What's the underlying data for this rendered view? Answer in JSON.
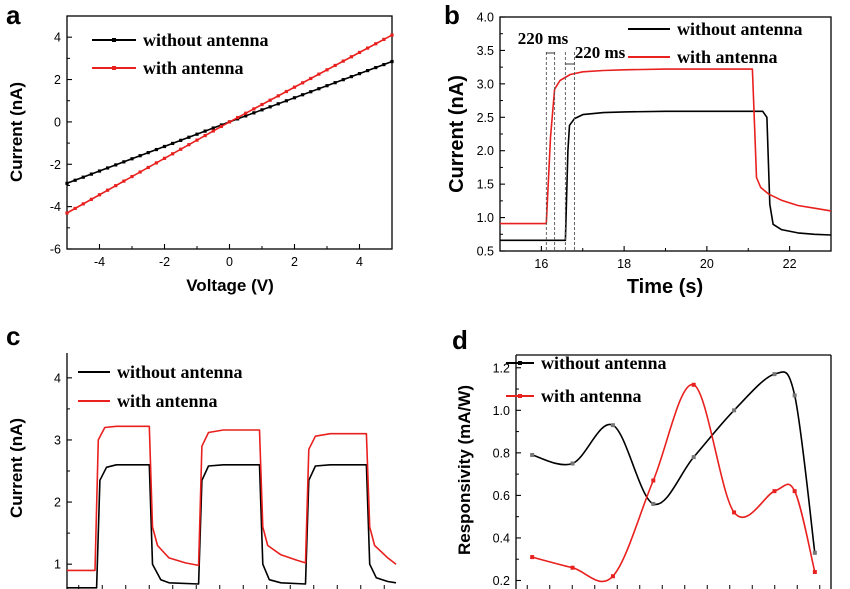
{
  "chart_data": [
    {
      "panel": "a",
      "type": "line",
      "xlabel": "Voltage (V)",
      "ylabel": "Current (nA)",
      "xlim": [
        -5,
        5
      ],
      "ylim": [
        -6,
        5
      ],
      "xticks": [
        -4,
        -2,
        0,
        2,
        4
      ],
      "yticks": [
        -6,
        -4,
        -2,
        0,
        2,
        4
      ],
      "legend": "top-left",
      "series": [
        {
          "name": "without antenna",
          "color": "#000000",
          "x": [
            -5,
            0,
            5
          ],
          "y": [
            -2.9,
            0,
            2.85
          ]
        },
        {
          "name": "with antenna",
          "color": "#e8201e",
          "x": [
            -5,
            0,
            5
          ],
          "y": [
            -4.3,
            0,
            4.1
          ]
        }
      ]
    },
    {
      "panel": "b",
      "type": "line",
      "xlabel": "Time (s)",
      "ylabel": "Current (nA)",
      "xlim": [
        15,
        23
      ],
      "ylim": [
        0.5,
        4.0
      ],
      "xticks": [
        16,
        18,
        20,
        22
      ],
      "yticks": [
        0.5,
        1.0,
        1.5,
        2.0,
        2.5,
        3.0,
        3.5,
        4.0
      ],
      "legend": "top-right",
      "annotations": [
        "220 ms",
        "220 ms"
      ],
      "series": [
        {
          "name": "without antenna",
          "color": "#000000",
          "x": [
            15,
            16.58,
            16.64,
            16.68,
            16.8,
            17.0,
            17.5,
            18,
            19,
            20,
            21.35,
            21.45,
            21.52,
            21.6,
            21.8,
            22.2,
            22.6,
            23
          ],
          "y": [
            0.66,
            0.66,
            2.0,
            2.38,
            2.48,
            2.54,
            2.57,
            2.58,
            2.59,
            2.59,
            2.59,
            2.5,
            1.2,
            0.9,
            0.82,
            0.77,
            0.75,
            0.74
          ]
        },
        {
          "name": "with antenna",
          "color": "#e8201e",
          "x": [
            15,
            16.12,
            16.22,
            16.32,
            16.45,
            16.7,
            17.0,
            17.5,
            18,
            19,
            20,
            21.1,
            21.15,
            21.2,
            21.3,
            21.5,
            21.8,
            22.2,
            22.6,
            23
          ],
          "y": [
            0.91,
            0.91,
            2.2,
            2.92,
            3.05,
            3.14,
            3.18,
            3.2,
            3.21,
            3.22,
            3.22,
            3.22,
            2.4,
            1.6,
            1.45,
            1.35,
            1.26,
            1.18,
            1.14,
            1.1
          ]
        }
      ]
    },
    {
      "panel": "c",
      "type": "line",
      "ylabel": "Current (nA)",
      "ylim": [
        0.6,
        4.4
      ],
      "yticks": [
        1,
        2,
        3,
        4
      ],
      "legend": "top-left",
      "series": [
        {
          "name": "without antenna",
          "color": "#000000",
          "x": [
            0,
            0.18,
            0.2,
            0.24,
            0.3,
            0.45,
            0.5,
            0.52,
            0.57,
            0.62,
            0.8,
            0.82,
            0.86,
            0.95,
            1.1,
            1.17,
            1.19,
            1.23,
            1.3,
            1.45,
            1.47,
            1.51,
            1.6,
            1.75,
            1.82,
            1.84,
            1.88,
            1.95,
            2.0
          ],
          "y": [
            0.62,
            0.62,
            2.35,
            2.56,
            2.6,
            2.6,
            2.6,
            1.0,
            0.75,
            0.7,
            0.68,
            2.35,
            2.58,
            2.6,
            2.6,
            2.6,
            1.0,
            0.75,
            0.7,
            0.68,
            2.35,
            2.58,
            2.6,
            2.6,
            2.6,
            1.0,
            0.78,
            0.72,
            0.7
          ]
        },
        {
          "name": "with antenna",
          "color": "#e8201e",
          "x": [
            0,
            0.17,
            0.19,
            0.23,
            0.3,
            0.45,
            0.5,
            0.52,
            0.55,
            0.62,
            0.72,
            0.8,
            0.82,
            0.86,
            0.95,
            1.1,
            1.17,
            1.19,
            1.22,
            1.3,
            1.4,
            1.45,
            1.47,
            1.51,
            1.6,
            1.75,
            1.82,
            1.84,
            1.87,
            1.95,
            2.0
          ],
          "y": [
            0.9,
            0.9,
            3.0,
            3.2,
            3.22,
            3.22,
            3.22,
            1.6,
            1.3,
            1.1,
            1.02,
            0.98,
            2.9,
            3.12,
            3.16,
            3.16,
            3.16,
            1.6,
            1.3,
            1.15,
            1.06,
            1.02,
            2.85,
            3.06,
            3.1,
            3.1,
            3.1,
            1.6,
            1.3,
            1.1,
            1.0
          ]
        }
      ]
    },
    {
      "panel": "d",
      "type": "line",
      "ylabel": "Responsivity (mA/W)",
      "ylim": [
        0.16,
        1.26
      ],
      "yticks": [
        0.2,
        0.4,
        0.6,
        0.8,
        1.0,
        1.2
      ],
      "legend": "top-left",
      "series": [
        {
          "name": "without antenna",
          "color": "#000000",
          "x": [
            0,
            1,
            2,
            3,
            4,
            5,
            6,
            6.5,
            7
          ],
          "y": [
            0.79,
            0.75,
            0.93,
            0.56,
            0.78,
            1.0,
            1.17,
            1.07,
            0.33
          ]
        },
        {
          "name": "with antenna",
          "color": "#e8201e",
          "x": [
            0,
            1,
            2,
            3,
            4,
            5,
            6,
            6.5,
            7
          ],
          "y": [
            0.31,
            0.26,
            0.22,
            0.67,
            1.12,
            0.52,
            0.62,
            0.62,
            0.24
          ]
        }
      ]
    }
  ],
  "panel_labels": [
    "a",
    "b",
    "c",
    "d"
  ]
}
